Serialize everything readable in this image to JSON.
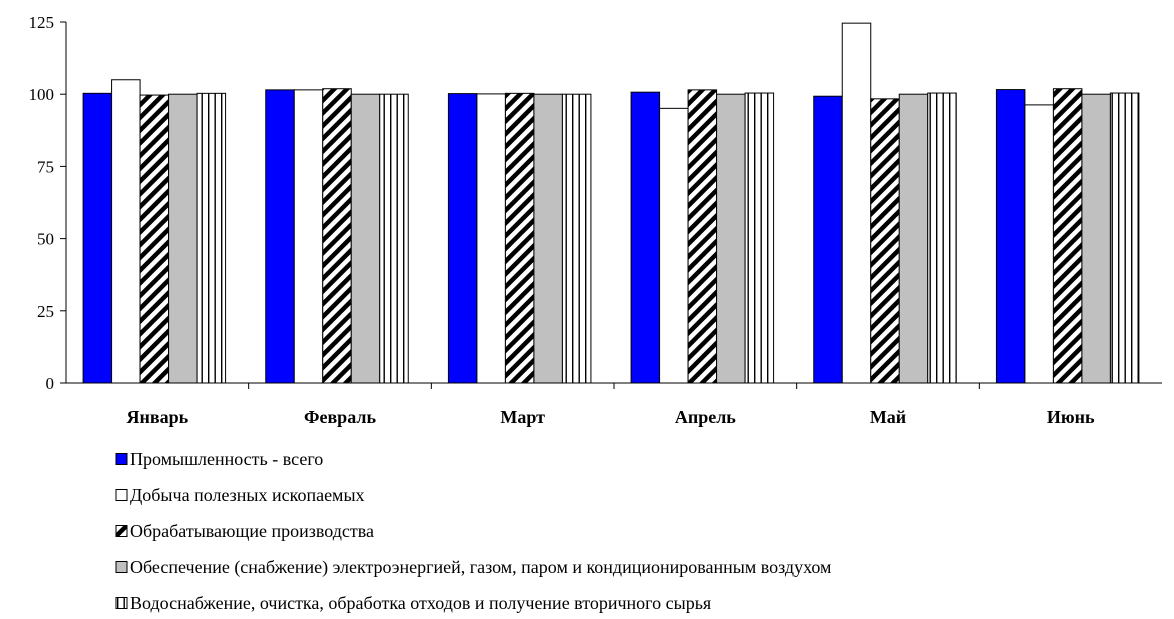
{
  "chart_data": {
    "type": "bar",
    "title": "",
    "xlabel": "",
    "ylabel": "",
    "ylim": [
      0,
      125
    ],
    "yticks": [
      0,
      25,
      50,
      75,
      100,
      125
    ],
    "grid": false,
    "legend_position": "bottom-left",
    "categories": [
      "Январь",
      "Февраль",
      "Март",
      "Апрель",
      "Май",
      "Июнь"
    ],
    "series": [
      {
        "name": "Промышленность - всего",
        "pattern": "solid-blue",
        "values": [
          100.3,
          101.5,
          100.2,
          100.7,
          99.3,
          101.6
        ]
      },
      {
        "name": "Добыча полезных ископаемых",
        "pattern": "white",
        "values": [
          105.0,
          101.5,
          100.1,
          95.1,
          124.6,
          96.3
        ]
      },
      {
        "name": "Обрабатывающие производства",
        "pattern": "diagonal-hatch",
        "values": [
          99.7,
          101.9,
          100.3,
          101.5,
          98.4,
          101.9
        ]
      },
      {
        "name": "Обеспечение (снабжение) электроэнергией, газом, паром и кондиционированным воздухом",
        "pattern": "solid-gray",
        "values": [
          100.0,
          100.0,
          100.0,
          100.0,
          100.0,
          100.0
        ]
      },
      {
        "name": "Водоснабжение, очистка, обработка отходов и получение вторичного сырья",
        "pattern": "vertical-stripes",
        "values": [
          100.3,
          100.0,
          100.0,
          100.4,
          100.4,
          100.4
        ]
      }
    ],
    "colors": {
      "blue": "#0000ff",
      "gray": "#c0c0c0",
      "white": "#ffffff",
      "outline": "#000000"
    }
  }
}
